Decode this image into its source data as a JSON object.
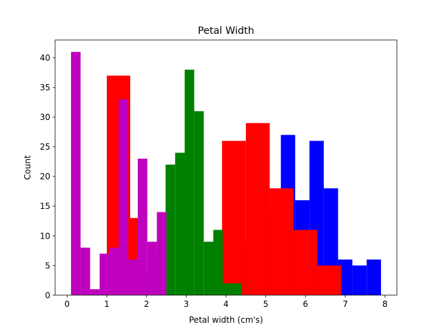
{
  "chart_data": {
    "type": "bar",
    "title": "Petal Width",
    "xlabel": "Petal width (cm's)",
    "ylabel": "Count",
    "xlim": [
      -0.3,
      8.3
    ],
    "ylim": [
      0,
      43
    ],
    "xticks": [
      "0",
      "1",
      "2",
      "3",
      "4",
      "5",
      "6",
      "7",
      "8"
    ],
    "yticks": [
      "0",
      "5",
      "10",
      "15",
      "20",
      "25",
      "30",
      "35",
      "40"
    ],
    "grid": false,
    "legend": "none",
    "series": [
      {
        "color": "#0000ff",
        "bin_edges": [
          4.3,
          4.66,
          5.02,
          5.38,
          5.74,
          6.1,
          6.46,
          6.82,
          7.18,
          7.54,
          7.9
        ],
        "counts": [
          9,
          23,
          14,
          27,
          16,
          26,
          18,
          6,
          5,
          6
        ]
      },
      {
        "color": "#ff0000",
        "bin_edges": [
          3.9,
          4.5,
          5.1,
          5.7,
          6.3,
          6.9
        ],
        "counts": [
          26,
          29,
          18,
          11,
          5
        ]
      },
      {
        "color": "#008000",
        "bin_edges": [
          2.0,
          2.24,
          2.48,
          2.72,
          2.96,
          3.2,
          3.44,
          3.68,
          3.92,
          4.16,
          4.4
        ],
        "counts": [
          4,
          7,
          22,
          24,
          38,
          31,
          9,
          11,
          2,
          2
        ]
      },
      {
        "color": "#ff0000",
        "bin_edges": [
          1.0,
          1.59,
          1.97,
          2.3
        ],
        "counts": [
          37,
          13,
          0
        ]
      },
      {
        "color": "#bf00bf",
        "bin_edges": [
          0.1,
          0.34,
          0.58,
          0.82,
          1.06,
          1.3,
          1.54,
          1.78,
          2.02,
          2.26,
          2.5
        ],
        "counts": [
          41,
          8,
          1,
          7,
          8,
          33,
          6,
          23,
          9,
          14
        ]
      }
    ]
  }
}
